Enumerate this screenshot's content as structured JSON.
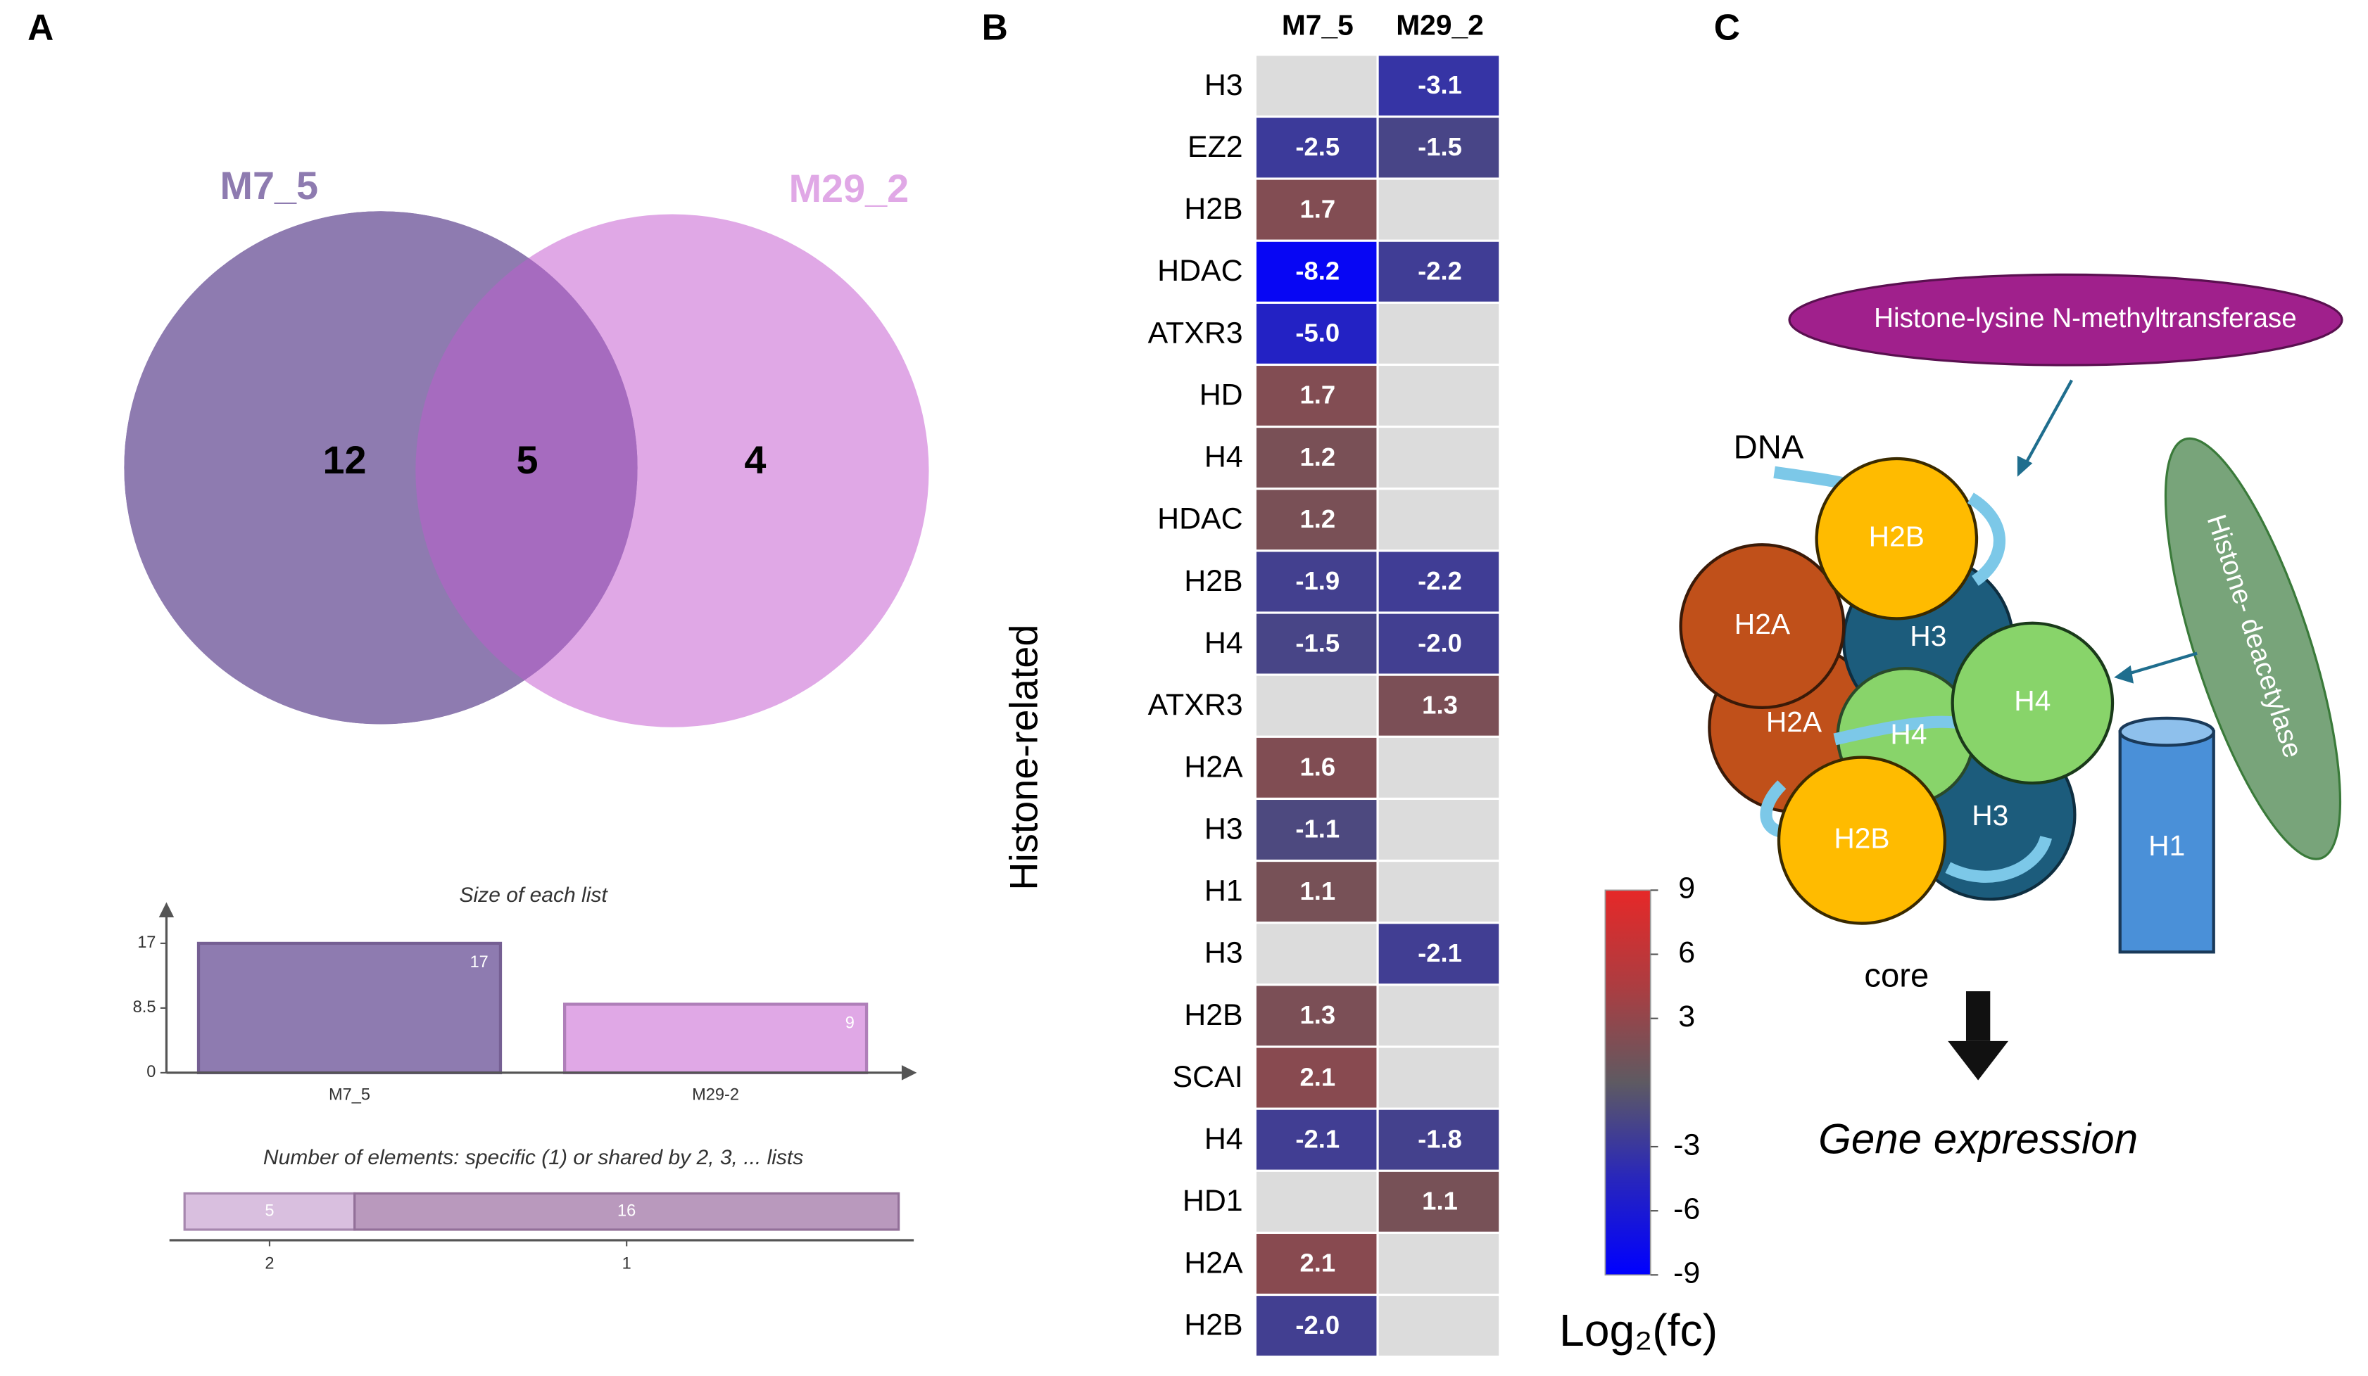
{
  "panels": [
    "A",
    "B",
    "C"
  ],
  "chart_data": [
    {
      "type": "venn",
      "sets": [
        {
          "name": "M7_5",
          "color": "#8e7bb0"
        },
        {
          "name": "M29_2",
          "color": "#e0a8e6"
        }
      ],
      "values": [
        12,
        5,
        4
      ],
      "overlap_color": "#a66bbf"
    },
    {
      "type": "bar",
      "title": "Size of each list",
      "categories": [
        "M7_5",
        "M29-2"
      ],
      "values": [
        17,
        9
      ],
      "colors": [
        "#8e7bb0",
        "#e0a8e6"
      ],
      "ylim": [
        0,
        22
      ],
      "yticks": [
        0,
        8.5,
        17
      ]
    },
    {
      "type": "hbar",
      "title": "Number of elements: specific (1) or shared by 2, 3, ... lists",
      "categories": [
        "2",
        "1"
      ],
      "values": [
        5,
        16
      ],
      "colors": [
        "#d9bfdf",
        "#b999bd"
      ],
      "xlim": [
        0,
        21
      ]
    },
    {
      "type": "heatmap",
      "ylabel": "Histone-related",
      "categories": [
        "H3",
        "EZ2",
        "H2B",
        "HDAC",
        "ATXR3",
        "HD",
        "H4",
        "HDAC",
        "H2B",
        "H4",
        "ATXR3",
        "H2A",
        "H3",
        "H1",
        "H3",
        "H2B",
        "SCAI",
        "H4",
        "HD1",
        "H2A",
        "H2B"
      ],
      "series": [
        {
          "name": "M7_5",
          "values": [
            null,
            -2.5,
            1.7,
            -8.2,
            -5.0,
            1.7,
            1.2,
            1.2,
            -1.9,
            -1.5,
            null,
            1.6,
            -1.1,
            1.1,
            null,
            1.3,
            2.1,
            -2.1,
            null,
            2.1,
            -2.0
          ],
          "value_labels": [
            null,
            "-2.5",
            "1.7",
            "-8.2",
            "-5.0",
            "1.7",
            "1.2",
            "1.2",
            "-1.9",
            "-1.5",
            null,
            "1.6",
            "-1.1",
            "1.1",
            null,
            "1.3",
            "2.1",
            "-2.1",
            null,
            "2.1",
            "-2.0"
          ]
        },
        {
          "name": "M29_2",
          "values": [
            -3.1,
            -1.5,
            null,
            -2.2,
            null,
            null,
            null,
            null,
            -2.2,
            -2.0,
            1.3,
            null,
            null,
            null,
            -2.1,
            null,
            null,
            -1.8,
            1.1,
            null,
            null
          ],
          "value_labels": [
            "-3.1",
            "-1.5",
            null,
            "-2.2",
            null,
            null,
            null,
            null,
            "-2.2",
            "-2.0",
            "1.3",
            null,
            null,
            null,
            "-2.1",
            null,
            null,
            "-1.8",
            "1.1",
            null,
            null
          ]
        }
      ],
      "zlim": [
        -9,
        9
      ],
      "zticks": [
        9,
        6,
        3,
        -3,
        -6,
        -9
      ],
      "colorbar_label": "Log₂(fc)",
      "colormap": [
        "#0000ff",
        "#5e5a62",
        "#e62828"
      ],
      "missing_color": "#dcdcdc"
    }
  ],
  "diagram": {
    "enzymes": [
      "Histone-lysine N-methyltransferase",
      "Histone- deacetylase"
    ],
    "dna": "DNA",
    "histones": [
      "H2B",
      "H2A",
      "H3",
      "H4",
      "H2A",
      "H4",
      "H2B",
      "H3"
    ],
    "linker": "H1",
    "core": "core",
    "output": "Gene expression"
  }
}
